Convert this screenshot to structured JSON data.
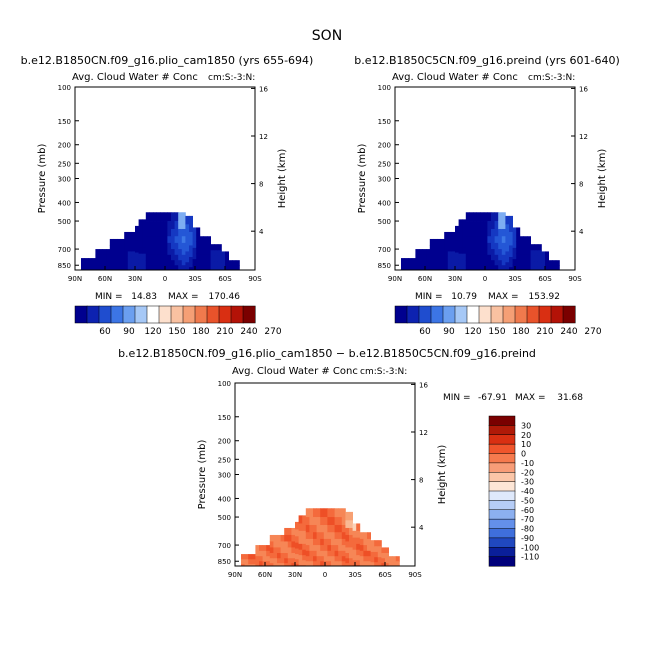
{
  "page": {
    "title": "SON",
    "diff_title": "b.e12.B1850CN.f09_g16.plio_cam1850 − b.e12.B1850C5CN.f09_g16.preind"
  },
  "colors": {
    "blue_scale": [
      "#00008f",
      "#0a1aa6",
      "#1538c2",
      "#2457d6",
      "#3d78e6",
      "#5a94ee",
      "#7dadf2",
      "#a3c6f6",
      "#c9ddfa",
      "#e6eefc"
    ],
    "warm_scale": [
      "#fde9dc",
      "#fbd2b8",
      "#f9b994",
      "#f7a073",
      "#f68656",
      "#f46a3c",
      "#ee4f26",
      "#dc3616",
      "#bd1f0c",
      "#7a0403"
    ]
  },
  "chart_data": [
    {
      "type": "heatmap",
      "title": "b.e12.B1850CN.f09_g16.plio_cam1850 (yrs 655-694)",
      "subtitle": "Avg. Cloud Water # Conc",
      "units_label": "cm:S:-3:N:",
      "xlabel": "",
      "ylabel": "Pressure (mb)",
      "y2label": "Height (km)",
      "x_ticks": [
        "90N",
        "60N",
        "30N",
        "0",
        "30S",
        "60S",
        "90S"
      ],
      "y_ticks": [
        "100",
        "150",
        "200",
        "250",
        "300",
        "400",
        "500",
        "700",
        "850"
      ],
      "y2_ticks": [
        "16",
        "12",
        "8",
        "4"
      ],
      "min_label": "MIN =",
      "min": "14.83",
      "max_label": "MAX =",
      "max": "170.46",
      "colorbar": {
        "labels": [
          "60",
          "90",
          "120",
          "150",
          "180",
          "210",
          "240",
          "270"
        ],
        "colors": [
          "#00008f",
          "#0d22b0",
          "#1f4dcf",
          "#3c75e5",
          "#6b9ff0",
          "#a6c8f6",
          "#ffffff",
          "#fde0cd",
          "#f9c1a1",
          "#f59f75",
          "#f07a4d",
          "#e9532b",
          "#d92f12",
          "#b31207",
          "#7a0000"
        ]
      },
      "cmap": "blue"
    },
    {
      "type": "heatmap",
      "title": "b.e12.B1850C5CN.f09_g16.preind (yrs 601-640)",
      "subtitle": "Avg. Cloud Water # Conc",
      "units_label": "cm:S:-3:N:",
      "xlabel": "",
      "ylabel": "Pressure (mb)",
      "y2label": "Height (km)",
      "x_ticks": [
        "90N",
        "60N",
        "30N",
        "0",
        "30S",
        "60S",
        "90S"
      ],
      "y_ticks": [
        "100",
        "150",
        "200",
        "250",
        "300",
        "400",
        "500",
        "700",
        "850"
      ],
      "y2_ticks": [
        "16",
        "12",
        "8",
        "4"
      ],
      "min_label": "MIN =",
      "min": "10.79",
      "max_label": "MAX =",
      "max": "153.92",
      "colorbar": {
        "labels": [
          "60",
          "90",
          "120",
          "150",
          "180",
          "210",
          "240",
          "270"
        ],
        "colors": [
          "#00008f",
          "#0d22b0",
          "#1f4dcf",
          "#3c75e5",
          "#6b9ff0",
          "#a6c8f6",
          "#ffffff",
          "#fde0cd",
          "#f9c1a1",
          "#f59f75",
          "#f07a4d",
          "#e9532b",
          "#d92f12",
          "#b31207",
          "#7a0000"
        ]
      },
      "cmap": "blue"
    },
    {
      "type": "heatmap",
      "title": "",
      "subtitle": "Avg. Cloud Water # Conc",
      "units_label": "cm:S:-3:N:",
      "xlabel": "",
      "ylabel": "Pressure (mb)",
      "y2label": "Height (km)",
      "x_ticks": [
        "90N",
        "60N",
        "30N",
        "0",
        "30S",
        "60S",
        "90S"
      ],
      "y_ticks": [
        "100",
        "150",
        "200",
        "250",
        "300",
        "400",
        "500",
        "700",
        "850"
      ],
      "y2_ticks": [
        "16",
        "12",
        "8",
        "4"
      ],
      "min_label": "MIN =",
      "min": "-67.91",
      "max_label": "MAX =",
      "max": "31.68",
      "colorbar": {
        "labels": [
          "30",
          "20",
          "10",
          "0",
          "-10",
          "-20",
          "-30",
          "-40",
          "-50",
          "-60",
          "-70",
          "-80",
          "-90",
          "-100",
          "-110"
        ],
        "colors": [
          "#7a0000",
          "#b01a08",
          "#d93012",
          "#f0552c",
          "#f67a4e",
          "#f89d78",
          "#fbc6a8",
          "#fde6d6",
          "#dfe9fb",
          "#b6cdf6",
          "#8cb0f0",
          "#6490ea",
          "#3f6fdc",
          "#2048bf",
          "#0a1f9a",
          "#00007a"
        ]
      },
      "cmap": "warm"
    }
  ]
}
